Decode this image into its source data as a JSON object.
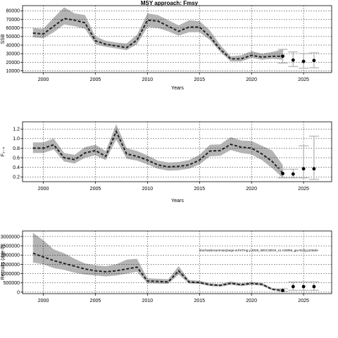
{
  "chart_data": [
    {
      "type": "line",
      "title": "MSY approach: Fmsy",
      "xlabel": "Years",
      "ylabel": "SSB",
      "xlim": [
        1998,
        2027.7
      ],
      "ylim": [
        8000,
        86000
      ],
      "xticks": [
        "2000",
        "2005",
        "2010",
        "2015",
        "2020",
        "2025"
      ],
      "xtick_values": [
        2000,
        2005,
        2010,
        2015,
        2020,
        2025
      ],
      "yticks": [
        "10000",
        "20000",
        "30000",
        "40000",
        "50000",
        "60000",
        "70000",
        "80000"
      ],
      "ytick_values": [
        10000,
        20000,
        30000,
        40000,
        50000,
        60000,
        70000,
        80000
      ],
      "grid": true,
      "series": [
        {
          "x": [
            1999,
            2000,
            2001,
            2002,
            2003,
            2004,
            2005,
            2006,
            2007,
            2008,
            2009,
            2010,
            2011,
            2012,
            2013,
            2014,
            2015,
            2016,
            2017,
            2018,
            2019,
            2020,
            2021,
            2022,
            2023
          ],
          "median": [
            54000,
            53000,
            62000,
            71000,
            69000,
            66000,
            45000,
            41000,
            39000,
            37000,
            46000,
            69000,
            68000,
            62000,
            56000,
            61000,
            61000,
            50000,
            35000,
            24000,
            24000,
            28000,
            26000,
            27000,
            27000
          ],
          "lower": [
            49000,
            48000,
            55000,
            64000,
            62000,
            59000,
            41000,
            38000,
            36000,
            34000,
            41000,
            61000,
            60000,
            56000,
            51000,
            55000,
            55000,
            46000,
            32000,
            21000,
            21000,
            25000,
            23000,
            24000,
            23000
          ],
          "upper": [
            60000,
            59000,
            72000,
            84000,
            77000,
            75000,
            50000,
            45000,
            43000,
            42000,
            52000,
            77000,
            75000,
            69000,
            63000,
            69000,
            68000,
            57000,
            40000,
            27000,
            28000,
            33000,
            30000,
            32000,
            35000
          ]
        }
      ],
      "projection": {
        "x": [
          2023,
          2024,
          2025,
          2026
        ],
        "value": [
          27000,
          22500,
          21000,
          22000
        ],
        "lower": [
          19000,
          15000,
          13000,
          13500
        ],
        "upper": [
          35000,
          32000,
          30000,
          31000
        ]
      }
    },
    {
      "type": "line",
      "title": "",
      "xlabel": "Years",
      "ylabel": "F₂₋₅",
      "xlim": [
        1998,
        2027.7
      ],
      "ylim": [
        0.1,
        1.35
      ],
      "xticks": [
        "2000",
        "2005",
        "2010",
        "2015",
        "2020",
        "2025"
      ],
      "xtick_values": [
        2000,
        2005,
        2010,
        2015,
        2020,
        2025
      ],
      "yticks": [
        "0.2",
        "0.4",
        "0.6",
        "0.8",
        "1.0",
        "1.2"
      ],
      "ytick_values": [
        0.2,
        0.4,
        0.6,
        0.8,
        1.0,
        1.2
      ],
      "grid": true,
      "series": [
        {
          "x": [
            1999,
            2000,
            2001,
            2002,
            2003,
            2004,
            2005,
            2006,
            2007,
            2008,
            2009,
            2010,
            2011,
            2012,
            2013,
            2014,
            2015,
            2016,
            2017,
            2018,
            2019,
            2020,
            2021,
            2022,
            2023
          ],
          "median": [
            0.8,
            0.8,
            0.87,
            0.6,
            0.56,
            0.7,
            0.75,
            0.63,
            1.15,
            0.68,
            0.63,
            0.55,
            0.45,
            0.41,
            0.42,
            0.45,
            0.55,
            0.74,
            0.75,
            0.88,
            0.82,
            0.8,
            0.68,
            0.52,
            0.28
          ],
          "lower": [
            0.7,
            0.7,
            0.77,
            0.52,
            0.48,
            0.6,
            0.65,
            0.55,
            0.98,
            0.58,
            0.54,
            0.46,
            0.37,
            0.33,
            0.34,
            0.37,
            0.46,
            0.63,
            0.64,
            0.76,
            0.7,
            0.67,
            0.55,
            0.38,
            0.18
          ],
          "upper": [
            0.92,
            0.92,
            1.0,
            0.7,
            0.66,
            0.82,
            0.87,
            0.74,
            1.3,
            0.8,
            0.74,
            0.65,
            0.54,
            0.5,
            0.51,
            0.55,
            0.66,
            0.87,
            0.88,
            1.03,
            0.96,
            0.95,
            0.85,
            0.75,
            0.45
          ]
        }
      ],
      "projection": {
        "x": [
          2023,
          2024,
          2025,
          2026
        ],
        "value": [
          0.27,
          0.26,
          0.37,
          0.37
        ],
        "lower": [
          0.18,
          0.18,
          0.18,
          0.15
        ],
        "upper": [
          0.36,
          0.36,
          0.85,
          1.05
        ]
      }
    },
    {
      "type": "line",
      "title": "",
      "xlabel": "",
      "ylabel": "Recruits (age 0)",
      "xlim": [
        1998,
        2027.7
      ],
      "ylim": [
        -80000,
        3300000
      ],
      "xticks": [
        "2000",
        "2005",
        "2010",
        "2015",
        "2020",
        "2025"
      ],
      "xtick_values": [
        2000,
        2005,
        2010,
        2015,
        2020,
        2025
      ],
      "yticks": [
        "0",
        "500000",
        "1000000",
        "1500000",
        "2000000",
        "2500000",
        "3000000"
      ],
      "ytick_values": [
        0,
        500000,
        1000000,
        1500000,
        2000000,
        2500000,
        3000000
      ],
      "grid": true,
      "annotation": "stochasticsummarylarge.w.fmTmg.y.2026_WGCSE04_v1.r15056_ga.r0c0j.ju23a0e",
      "series": [
        {
          "x": [
            1999,
            2000,
            2001,
            2002,
            2003,
            2004,
            2005,
            2006,
            2007,
            2008,
            2009,
            2010,
            2011,
            2012,
            2013,
            2014,
            2015,
            2016,
            2017,
            2018,
            2019,
            2020,
            2021,
            2022,
            2023
          ],
          "median": [
            2100000,
            1900000,
            1700000,
            1550000,
            1400000,
            1250000,
            1150000,
            1100000,
            1150000,
            1250000,
            1350000,
            600000,
            580000,
            550000,
            1150000,
            550000,
            520000,
            400000,
            360000,
            480000,
            400000,
            470000,
            420000,
            150000,
            90000
          ],
          "lower": [
            1600000,
            1500000,
            1300000,
            1200000,
            1050000,
            950000,
            900000,
            850000,
            900000,
            1000000,
            1100000,
            480000,
            460000,
            450000,
            950000,
            460000,
            440000,
            330000,
            300000,
            400000,
            330000,
            390000,
            350000,
            100000,
            40000
          ],
          "upper": [
            3200000,
            2800000,
            2300000,
            2100000,
            1800000,
            1550000,
            1450000,
            1400000,
            1500000,
            1750000,
            1800000,
            750000,
            720000,
            700000,
            1400000,
            650000,
            620000,
            480000,
            440000,
            580000,
            480000,
            560000,
            500000,
            220000,
            180000
          ]
        }
      ],
      "projection": {
        "x": [
          2023,
          2024,
          2025,
          2026
        ],
        "value": [
          90000,
          300000,
          300000,
          300000
        ],
        "lower": [
          40000,
          100000,
          100000,
          100000
        ],
        "upper": [
          180000,
          550000,
          550000,
          550000
        ]
      }
    }
  ]
}
